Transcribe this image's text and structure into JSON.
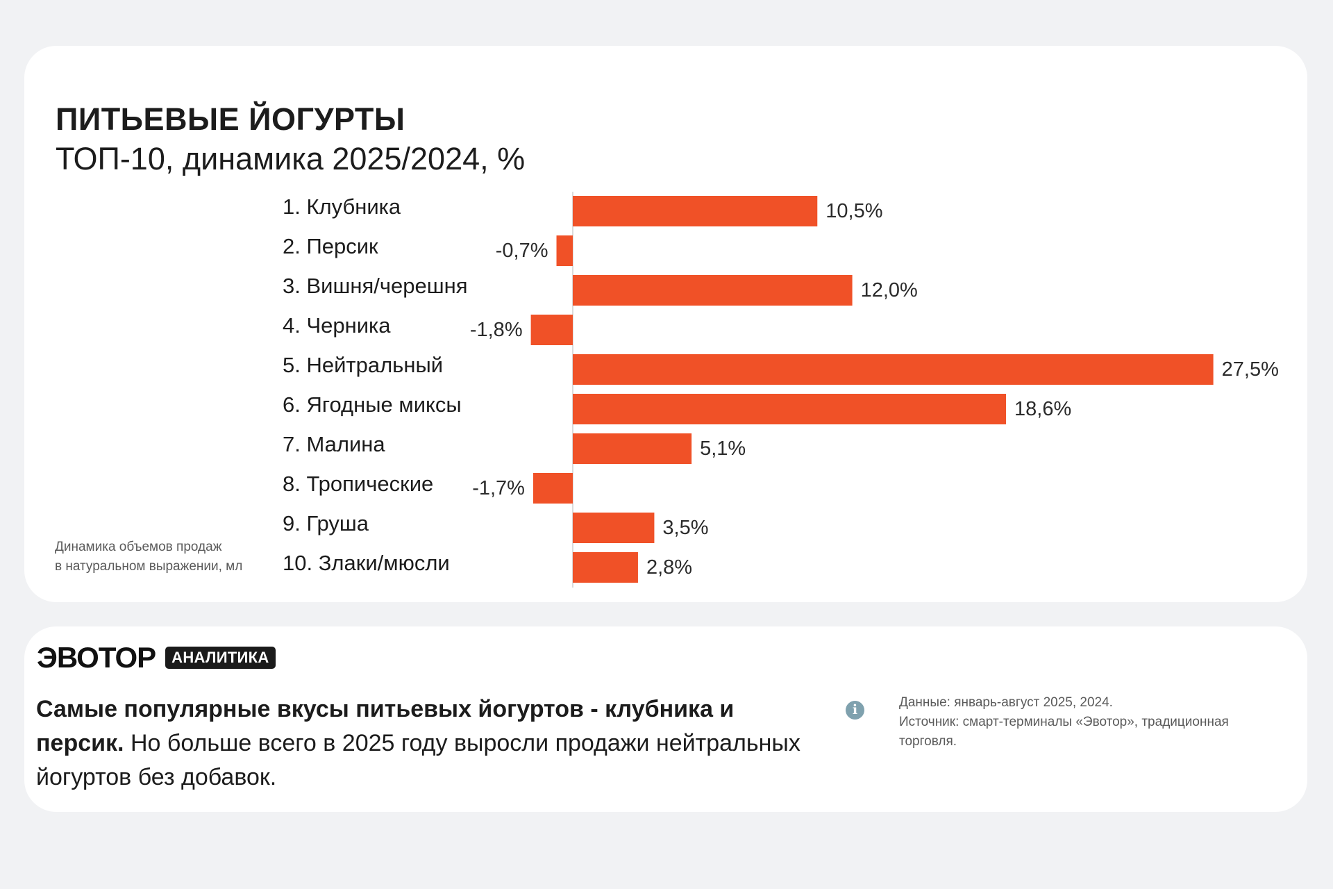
{
  "colors": {
    "bar": "#f05127",
    "axis": "#cfcfcf",
    "background": "#f1f2f4",
    "card": "#ffffff"
  },
  "chart_data": {
    "type": "bar",
    "orientation": "horizontal",
    "title": "ПИТЬЕВЫЕ ЙОГУРТЫ",
    "subtitle": "ТОП-10, динамика 2025/2024, %",
    "categories": [
      "1. Клубника",
      "2. Персик",
      "3. Вишня/черешня",
      "4. Черника",
      "5. Нейтральный",
      "6. Ягодные миксы",
      "7. Малина",
      "8. Тропические",
      "9. Груша",
      "10. Злаки/мюсли"
    ],
    "values": [
      10.5,
      -0.7,
      12.0,
      -1.8,
      27.5,
      18.6,
      5.1,
      -1.7,
      3.5,
      2.8
    ],
    "value_labels": [
      "10,5%",
      "-0,7%",
      "12,0%",
      "-1,8%",
      "27,5%",
      "18,6%",
      "5,1%",
      "-1,7%",
      "3,5%",
      "2,8%"
    ],
    "xlim": [
      -2,
      28
    ],
    "grid": false,
    "legend": "none",
    "footnote": [
      "Динамика объемов продаж",
      "в натуральном выражении, мл"
    ]
  },
  "info": {
    "brand_name": "ЭВОТОР",
    "brand_badge": "АНАЛИТИКА",
    "summary_bold": "Самые популярные вкусы питьевых йогуртов - клубника и персик.",
    "summary_rest": " Но больше всего в 2025 году выросли продажи нейтральных йогуртов без добавок.",
    "info_icon": "info-icon",
    "source_lines": [
      "Данные: январь-август 2025, 2024.",
      "Источник: смарт-терминалы «Эвотор», традиционная торговля."
    ]
  }
}
